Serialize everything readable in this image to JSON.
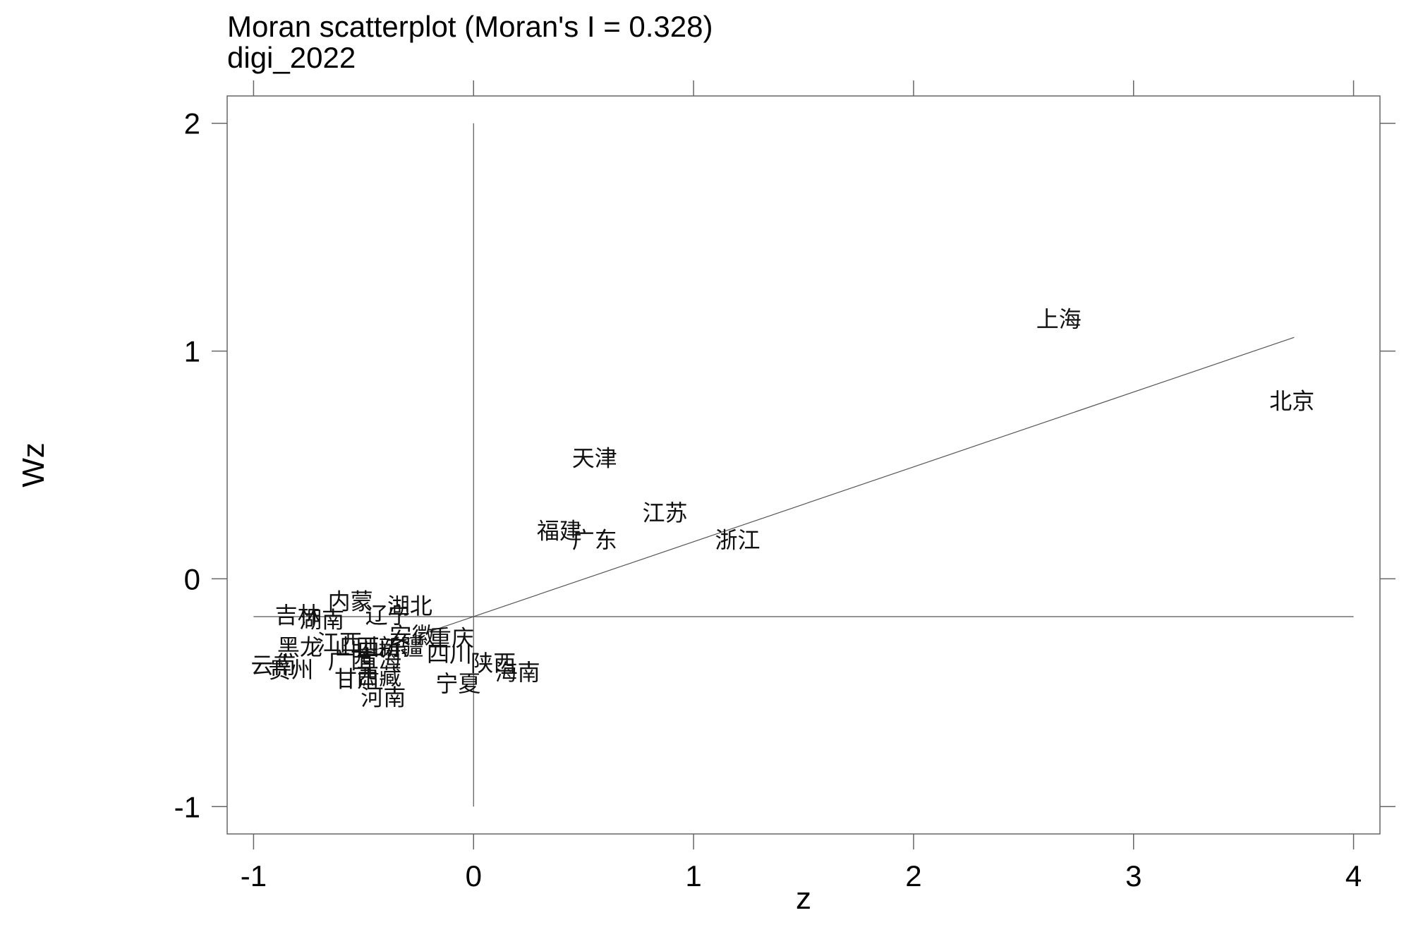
{
  "chart_data": {
    "type": "scatter",
    "title": "Moran scatterplot (Moran's I = 0.328)",
    "subtitle": "digi_2022",
    "xlabel": "z",
    "ylabel": "Wz",
    "xlim": [
      -1.12,
      4.12
    ],
    "ylim": [
      -1.12,
      2.12
    ],
    "x_ticks": [
      -1,
      0,
      1,
      2,
      3,
      4
    ],
    "y_ticks": [
      -1,
      0,
      1,
      2
    ],
    "x_tick_labels": [
      "-1",
      "0",
      "1",
      "2",
      "3",
      "4"
    ],
    "y_tick_labels": [
      "-1",
      "0",
      "1",
      "2"
    ],
    "grid": false,
    "reference_lines": {
      "x": 0,
      "y": -0.166
    },
    "fit_line": {
      "x": [
        -0.5,
        3.73
      ],
      "y": [
        -0.33,
        1.06
      ],
      "slope": 0.328
    },
    "points": [
      {
        "label": "北京",
        "x": 3.72,
        "y": 0.78
      },
      {
        "label": "上海",
        "x": 2.66,
        "y": 1.14
      },
      {
        "label": "天津",
        "x": 0.55,
        "y": 0.53
      },
      {
        "label": "江苏",
        "x": 0.87,
        "y": 0.29
      },
      {
        "label": "浙江",
        "x": 1.2,
        "y": 0.17
      },
      {
        "label": "福建",
        "x": 0.39,
        "y": 0.21
      },
      {
        "label": "广东",
        "x": 0.55,
        "y": 0.17
      },
      {
        "label": "内蒙",
        "x": -0.56,
        "y": -0.1
      },
      {
        "label": "湖北",
        "x": -0.29,
        "y": -0.12
      },
      {
        "label": "吉林",
        "x": -0.8,
        "y": -0.16
      },
      {
        "label": "湖南",
        "x": -0.69,
        "y": -0.18
      },
      {
        "label": "辽宁",
        "x": -0.39,
        "y": -0.16
      },
      {
        "label": "安徽",
        "x": -0.28,
        "y": -0.25
      },
      {
        "label": "重庆",
        "x": -0.1,
        "y": -0.26
      },
      {
        "label": "黑龙",
        "x": -0.79,
        "y": -0.3
      },
      {
        "label": "江西",
        "x": -0.61,
        "y": -0.28
      },
      {
        "label": "山西",
        "x": -0.53,
        "y": -0.3
      },
      {
        "label": "山东",
        "x": -0.4,
        "y": -0.3
      },
      {
        "label": "新疆",
        "x": -0.33,
        "y": -0.3
      },
      {
        "label": "四川",
        "x": -0.11,
        "y": -0.33
      },
      {
        "label": "广西",
        "x": -0.56,
        "y": -0.36
      },
      {
        "label": "青海",
        "x": -0.43,
        "y": -0.35
      },
      {
        "label": "陕西",
        "x": 0.09,
        "y": -0.37
      },
      {
        "label": "海南",
        "x": 0.2,
        "y": -0.41
      },
      {
        "label": "云南",
        "x": -0.91,
        "y": -0.38
      },
      {
        "label": "贵州",
        "x": -0.83,
        "y": -0.4
      },
      {
        "label": "甘肃",
        "x": -0.53,
        "y": -0.44
      },
      {
        "label": "西藏",
        "x": -0.43,
        "y": -0.43
      },
      {
        "label": "宁夏",
        "x": -0.07,
        "y": -0.46
      },
      {
        "label": "河南",
        "x": -0.41,
        "y": -0.52
      }
    ]
  }
}
